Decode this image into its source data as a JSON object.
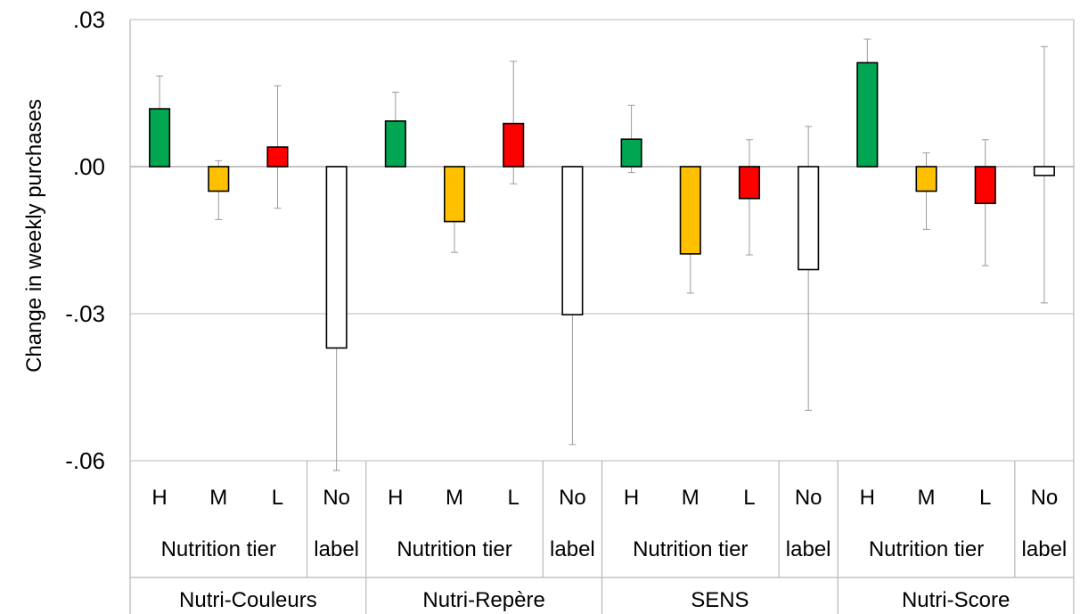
{
  "chart_data": {
    "type": "bar",
    "ylabel": "Change in weekly purchases",
    "ylim": [
      -0.06,
      0.03
    ],
    "yticks": [
      0.03,
      0.0,
      -0.03,
      -0.06
    ],
    "ytick_labels": [
      ".03",
      ".00",
      "-.03",
      "-.06"
    ],
    "grid": true,
    "colors": {
      "H": "#00a651",
      "M": "#ffc000",
      "L": "#ff0000",
      "No label": "#ffffff"
    },
    "groups": [
      {
        "name": "Nutri-Couleurs",
        "subgroup_label": "Nutrition tier",
        "bars": [
          {
            "key": "H",
            "label": "H",
            "value": 0.0118,
            "err_low": 0.0,
            "err_high": 0.0185
          },
          {
            "key": "M",
            "label": "M",
            "value": -0.005,
            "err_low": -0.0108,
            "err_high": 0.0012
          },
          {
            "key": "L",
            "label": "L",
            "value": 0.004,
            "err_low": -0.0085,
            "err_high": 0.0165
          },
          {
            "key": "No label",
            "label_lines": [
              "No",
              "label"
            ],
            "value": -0.037,
            "err_low": -0.062,
            "err_high": -0.0075
          }
        ]
      },
      {
        "name": "Nutri-Repère",
        "subgroup_label": "Nutrition tier",
        "bars": [
          {
            "key": "H",
            "label": "H",
            "value": 0.0093,
            "err_low": 0.003,
            "err_high": 0.0152
          },
          {
            "key": "M",
            "label": "M",
            "value": -0.0112,
            "err_low": -0.0175,
            "err_high": -0.005
          },
          {
            "key": "L",
            "label": "L",
            "value": 0.0088,
            "err_low": -0.0035,
            "err_high": 0.0215
          },
          {
            "key": "No label",
            "label_lines": [
              "No",
              "label"
            ],
            "value": -0.0302,
            "err_low": -0.0567,
            "err_high": -0.0038
          }
        ]
      },
      {
        "name": "SENS",
        "subgroup_label": "Nutrition tier",
        "bars": [
          {
            "key": "H",
            "label": "H",
            "value": 0.0056,
            "err_low": -0.0012,
            "err_high": 0.0125
          },
          {
            "key": "M",
            "label": "M",
            "value": -0.0178,
            "err_low": -0.0258,
            "err_high": -0.0095
          },
          {
            "key": "L",
            "label": "L",
            "value": -0.0065,
            "err_low": -0.018,
            "err_high": 0.0055
          },
          {
            "key": "No label",
            "label_lines": [
              "No",
              "label"
            ],
            "value": -0.021,
            "err_low": -0.0497,
            "err_high": 0.0082
          }
        ]
      },
      {
        "name": "Nutri-Score",
        "subgroup_label": "Nutrition tier",
        "bars": [
          {
            "key": "H",
            "label": "H",
            "value": 0.0212,
            "err_low": 0.0165,
            "err_high": 0.026
          },
          {
            "key": "M",
            "label": "M",
            "value": -0.005,
            "err_low": -0.0128,
            "err_high": 0.0028
          },
          {
            "key": "L",
            "label": "L",
            "value": -0.0075,
            "err_low": -0.0202,
            "err_high": 0.0055
          },
          {
            "key": "No label",
            "label_lines": [
              "No",
              "label"
            ],
            "value": -0.0018,
            "err_low": -0.0278,
            "err_high": 0.0245
          }
        ]
      }
    ]
  }
}
